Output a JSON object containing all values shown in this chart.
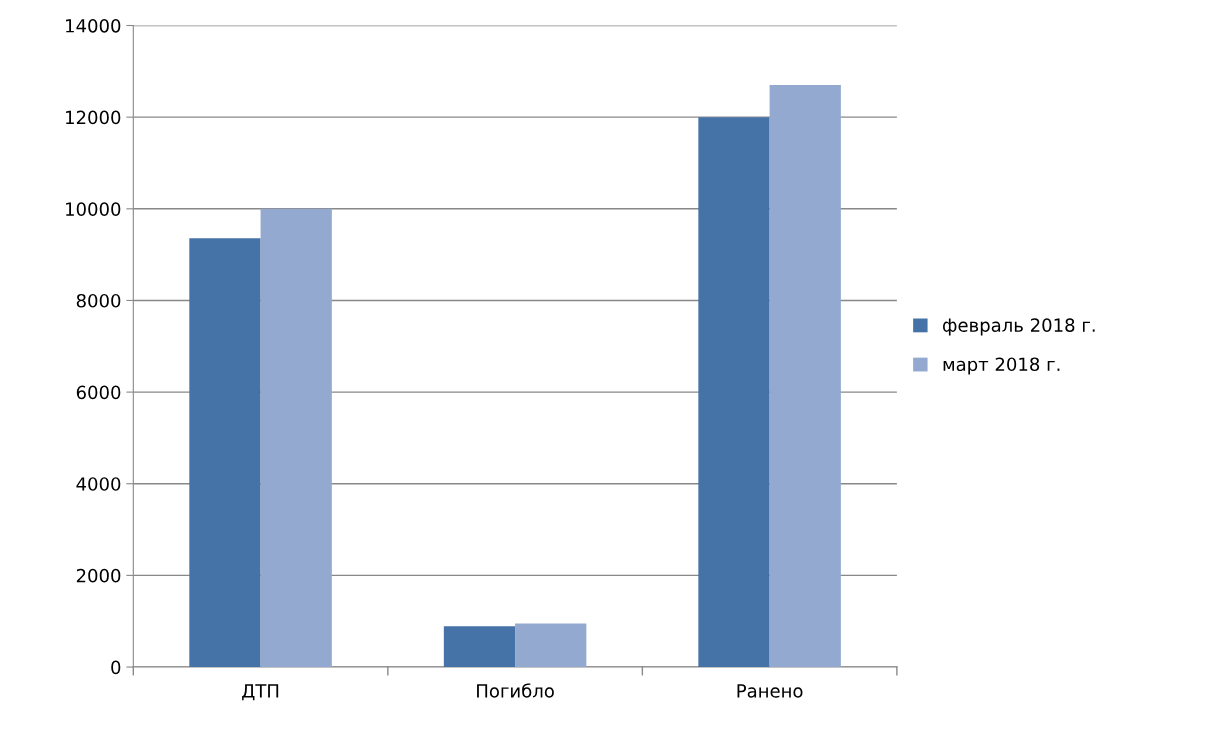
{
  "chart_data": {
    "type": "bar",
    "categories": [
      "ДТП",
      "Погибло",
      "Ранено"
    ],
    "series": [
      {
        "name": "февраль 2018 г.",
        "color": "#4572a7",
        "values": [
          9360,
          890,
          12000
        ]
      },
      {
        "name": "март 2018 г.",
        "color": "#93a9cf",
        "values": [
          10000,
          950,
          12700
        ]
      }
    ],
    "ylim": [
      0,
      14000
    ],
    "yticks": [
      0,
      2000,
      4000,
      6000,
      8000,
      10000,
      12000,
      14000
    ],
    "grid": "y",
    "legend": "right"
  }
}
